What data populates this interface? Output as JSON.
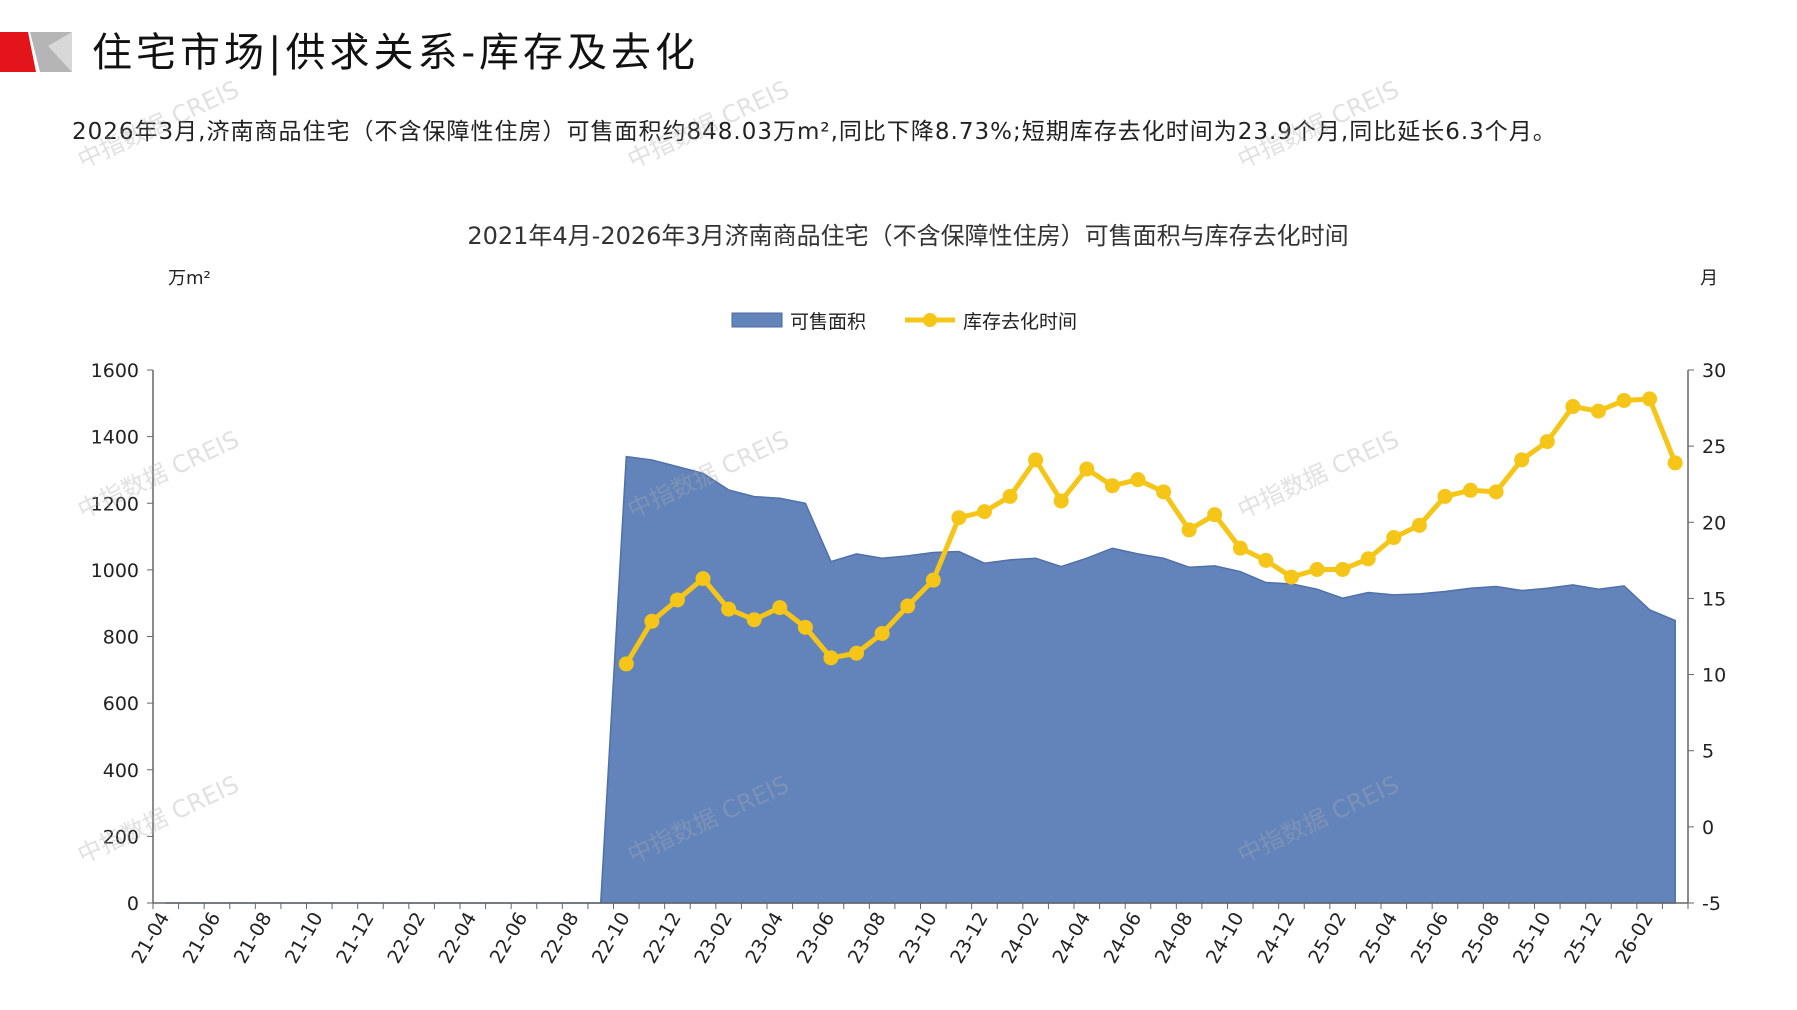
{
  "header": {
    "title": "住宅市场|供求关系-库存及去化",
    "summary": "2026年3月,济南商品住宅（不含保障性住房）可售面积约848.03万m²,同比下降8.73%;短期库存去化时间为23.9个月,同比延长6.3个月。",
    "colors": {
      "logo_red": "#e3141a",
      "logo_gray": "#999999"
    }
  },
  "watermark": "中指数据 CREIS",
  "chart_data": {
    "type": "area+line",
    "title": "2021年4月-2026年3月济南商品住宅（不含保障性住房）可售面积与库存去化时间",
    "y_left_unit": "万m²",
    "y_right_unit": "月",
    "y_left_range": [
      0,
      1600
    ],
    "y_left_ticks": [
      "0",
      "200",
      "400",
      "600",
      "800",
      "1000",
      "1200",
      "1400",
      "1600"
    ],
    "y_right_range": [
      -5,
      30
    ],
    "y_right_ticks": [
      "-5",
      "0",
      "5",
      "10",
      "15",
      "20",
      "25",
      "30"
    ],
    "x_tick_labels": [
      "21-04",
      "21-06",
      "21-08",
      "21-10",
      "21-12",
      "22-02",
      "22-04",
      "22-06",
      "22-08",
      "22-10",
      "22-12",
      "23-02",
      "23-04",
      "23-06",
      "23-08",
      "23-10",
      "23-12",
      "24-02",
      "24-04",
      "24-06",
      "24-08",
      "24-10",
      "24-12",
      "25-02",
      "25-04",
      "25-06",
      "25-08",
      "25-10",
      "25-12",
      "26-02"
    ],
    "legend": [
      {
        "name": "可售面积",
        "color": "#6384bb",
        "type": "area"
      },
      {
        "name": "库存去化时间",
        "color": "#f5c518",
        "type": "line"
      }
    ],
    "legend_position": "top-center",
    "grid": false,
    "months": [
      "21-04",
      "21-05",
      "21-06",
      "21-07",
      "21-08",
      "21-09",
      "21-10",
      "21-11",
      "21-12",
      "22-01",
      "22-02",
      "22-03",
      "22-04",
      "22-05",
      "22-06",
      "22-07",
      "22-08",
      "22-09",
      "22-10",
      "22-11",
      "22-12",
      "23-01",
      "23-02",
      "23-03",
      "23-04",
      "23-05",
      "23-06",
      "23-07",
      "23-08",
      "23-09",
      "23-10",
      "23-11",
      "23-12",
      "24-01",
      "24-02",
      "24-03",
      "24-04",
      "24-05",
      "24-06",
      "24-07",
      "24-08",
      "24-09",
      "24-10",
      "24-11",
      "24-12",
      "25-01",
      "25-02",
      "25-03",
      "25-04",
      "25-05",
      "25-06",
      "25-07",
      "25-08",
      "25-09",
      "25-10",
      "25-11",
      "25-12",
      "26-01",
      "26-02",
      "26-03"
    ],
    "series": [
      {
        "name": "可售面积",
        "axis": "left",
        "values": [
          0,
          0,
          0,
          0,
          0,
          0,
          0,
          0,
          0,
          0,
          0,
          0,
          0,
          0,
          0,
          0,
          0,
          0,
          1340,
          1330,
          1310,
          1290,
          1240,
          1220,
          1215,
          1200,
          1025,
          1048,
          1035,
          1042,
          1052,
          1055,
          1020,
          1030,
          1035,
          1010,
          1035,
          1065,
          1048,
          1035,
          1008,
          1012,
          995,
          962,
          958,
          942,
          915,
          932,
          925,
          928,
          935,
          945,
          950,
          938,
          945,
          955,
          942,
          952,
          880,
          848
        ]
      },
      {
        "name": "库存去化时间",
        "axis": "right",
        "values": [
          null,
          null,
          null,
          null,
          null,
          null,
          null,
          null,
          null,
          null,
          null,
          null,
          null,
          null,
          null,
          null,
          null,
          null,
          10.7,
          13.5,
          14.9,
          16.3,
          14.3,
          13.6,
          14.4,
          13.1,
          11.1,
          11.4,
          12.7,
          14.5,
          16.2,
          20.3,
          20.7,
          21.7,
          24.1,
          21.4,
          23.5,
          22.4,
          22.8,
          22,
          19.5,
          20.5,
          18.3,
          17.5,
          16.4,
          16.9,
          16.9,
          17.6,
          19,
          19.8,
          21.7,
          22.1,
          22,
          24.1,
          25.3,
          27.6,
          27.3,
          28,
          28.1,
          23.9
        ]
      }
    ]
  }
}
